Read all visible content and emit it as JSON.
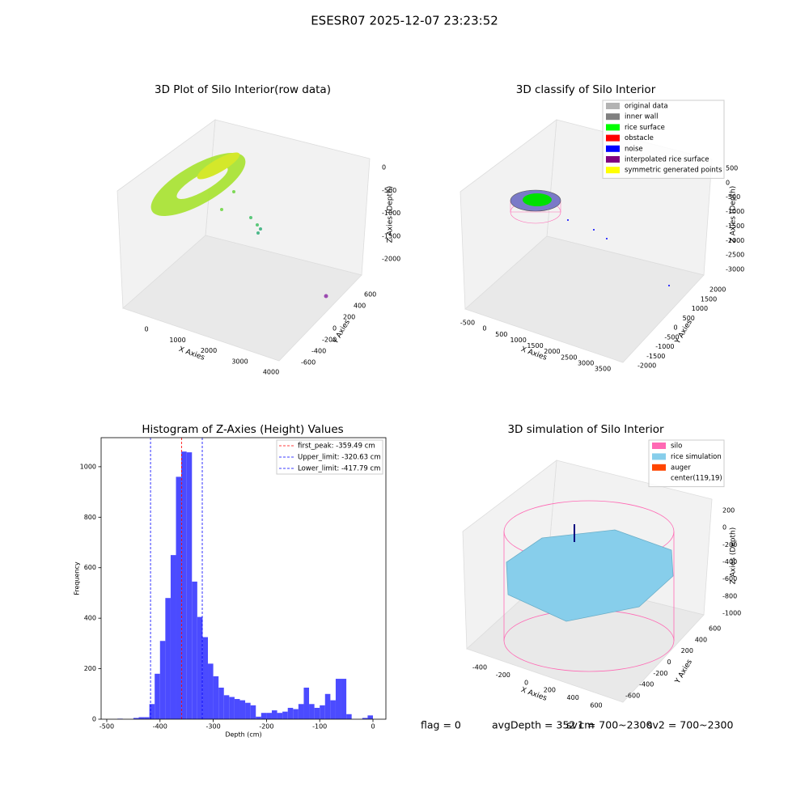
{
  "title": "ESESR07 2025-12-07 23:23:52",
  "chart_data": [
    {
      "type": "scatter3d",
      "title": "3D Plot of Silo Interior(row data)",
      "x_label": "X Axies",
      "y_label": "Y Axies",
      "z_label": "Z Axies (Depth)",
      "xticks": [
        0,
        1000,
        2000,
        3000,
        4000
      ],
      "yticks": [
        -600,
        -400,
        -200,
        0,
        200,
        400,
        600
      ],
      "zticks": [
        0,
        -500,
        -1000,
        -1500,
        -2000
      ]
    },
    {
      "type": "scatter3d",
      "title": "3D classify of Silo Interior",
      "x_label": "X Axies",
      "y_label": "Y Axies",
      "z_label": "Z Axies (Depth)",
      "xticks": [
        -500,
        0,
        500,
        1000,
        1500,
        2000,
        2500,
        3000,
        3500
      ],
      "yticks": [
        -2000,
        -1500,
        -1000,
        -500,
        0,
        500,
        1000,
        1500,
        2000
      ],
      "zticks": [
        -3000,
        -2500,
        -2000,
        -1500,
        -1000,
        -500,
        0,
        500
      ],
      "legend": [
        {
          "name": "original data",
          "color": "#b3b3b3"
        },
        {
          "name": "inner wall",
          "color": "#808080"
        },
        {
          "name": "rice surface",
          "color": "#00ff00"
        },
        {
          "name": "obstacle",
          "color": "#ff0000"
        },
        {
          "name": "noise",
          "color": "#0000ff"
        },
        {
          "name": "interpolated rice surface",
          "color": "#800080"
        },
        {
          "name": "symmetric generated points",
          "color": "#ffff00"
        }
      ]
    },
    {
      "type": "histogram",
      "title": "Histogram of Z-Axies (Height) Values",
      "x_label": "Depth (cm)",
      "y_label": "Frequency",
      "color": "#4b4bff",
      "bins": [
        -490,
        -480,
        -470,
        -460,
        -450,
        -440,
        -430,
        -420,
        -410,
        -400,
        -390,
        -380,
        -370,
        -360,
        -350,
        -340,
        -330,
        -320,
        -310,
        -300,
        -290,
        -280,
        -270,
        -260,
        -250,
        -240,
        -230,
        -220,
        -210,
        -200,
        -190,
        -180,
        -170,
        -160,
        -150,
        -140,
        -130,
        -120,
        -110,
        -100,
        -90,
        -80,
        -70,
        -60,
        -50,
        -40,
        -30,
        -20,
        -10,
        0
      ],
      "values": [
        0,
        2,
        0,
        0,
        5,
        8,
        8,
        60,
        180,
        310,
        480,
        650,
        960,
        1060,
        1057,
        545,
        405,
        325,
        220,
        170,
        125,
        95,
        88,
        80,
        75,
        65,
        55,
        10,
        25,
        25,
        35,
        25,
        30,
        45,
        40,
        60,
        125,
        60,
        45,
        55,
        100,
        75,
        160,
        160,
        20,
        0,
        0,
        5,
        15
      ],
      "xlim": [
        -510.6,
        24.3
      ],
      "ylim": [
        0,
        1115
      ],
      "xticks": [
        -500,
        -400,
        -300,
        -200,
        -100,
        0
      ],
      "yticks": [
        0,
        200,
        400,
        600,
        800,
        1000
      ],
      "vlines": [
        {
          "label": "first_peak: -359.49 cm",
          "value": -359.49,
          "color": "#ff0000"
        },
        {
          "label": "Upper_limit: -320.63 cm",
          "value": -320.63,
          "color": "#0000ff"
        },
        {
          "label": "Lower_limit: -417.79 cm",
          "value": -417.79,
          "color": "#0000ff"
        }
      ]
    },
    {
      "type": "surface3d",
      "title": "3D simulation of Silo Interior",
      "x_label": "X Axies",
      "y_label": "Y Axies",
      "z_label": "Z Axies (Depth)",
      "xticks": [
        -400,
        -200,
        0,
        200,
        400,
        600
      ],
      "yticks": [
        -600,
        -400,
        -200,
        0,
        200,
        400,
        600
      ],
      "zticks": [
        -1000,
        -800,
        -600,
        -400,
        -200,
        0,
        200
      ],
      "legend": [
        {
          "name": "silo",
          "color": "#ff69b4"
        },
        {
          "name": "rice simulation",
          "color": "#87ceeb"
        },
        {
          "name": "auger",
          "color": "#ff4500"
        },
        {
          "name": "center(119,19)",
          "color": "none"
        }
      ]
    }
  ],
  "footer": [
    "flag = 0",
    "avgDepth = 352 cm",
    "sv1 = 700~2300",
    "sv2 = 700~2300"
  ]
}
